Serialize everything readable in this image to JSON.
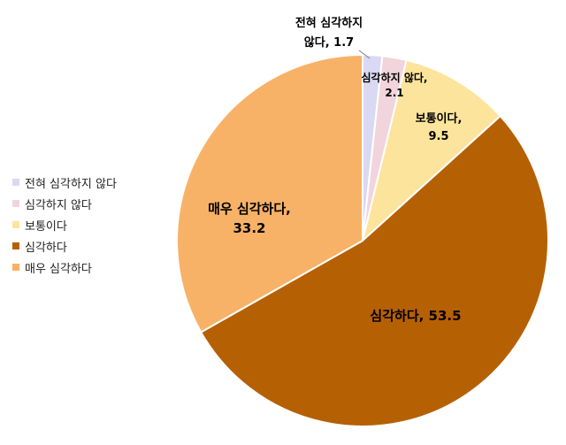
{
  "chart_data": {
    "type": "pie",
    "categories": [
      "전혀 심각하지 않다",
      "심각하지 않다",
      "보통이다",
      "심각하다",
      "매우 심각하다"
    ],
    "values": [
      1.7,
      2.1,
      9.5,
      53.5,
      33.2
    ],
    "colors": [
      "#D9D9F3",
      "#F2D4DD",
      "#FDE49C",
      "#B66004",
      "#F7B267"
    ],
    "data_labels": [
      {
        "line1": "전혀 심각하지",
        "line2": "않다, 1.7"
      },
      {
        "line1": "심각하지 않다,",
        "line2": "2.1"
      },
      {
        "line1": "보통이다,",
        "line2": "9.5"
      },
      {
        "line1": "심각하다, 53.5",
        "line2": ""
      },
      {
        "line1": "매우 심각하다,",
        "line2": "33.2"
      }
    ],
    "legend_position": "left"
  }
}
